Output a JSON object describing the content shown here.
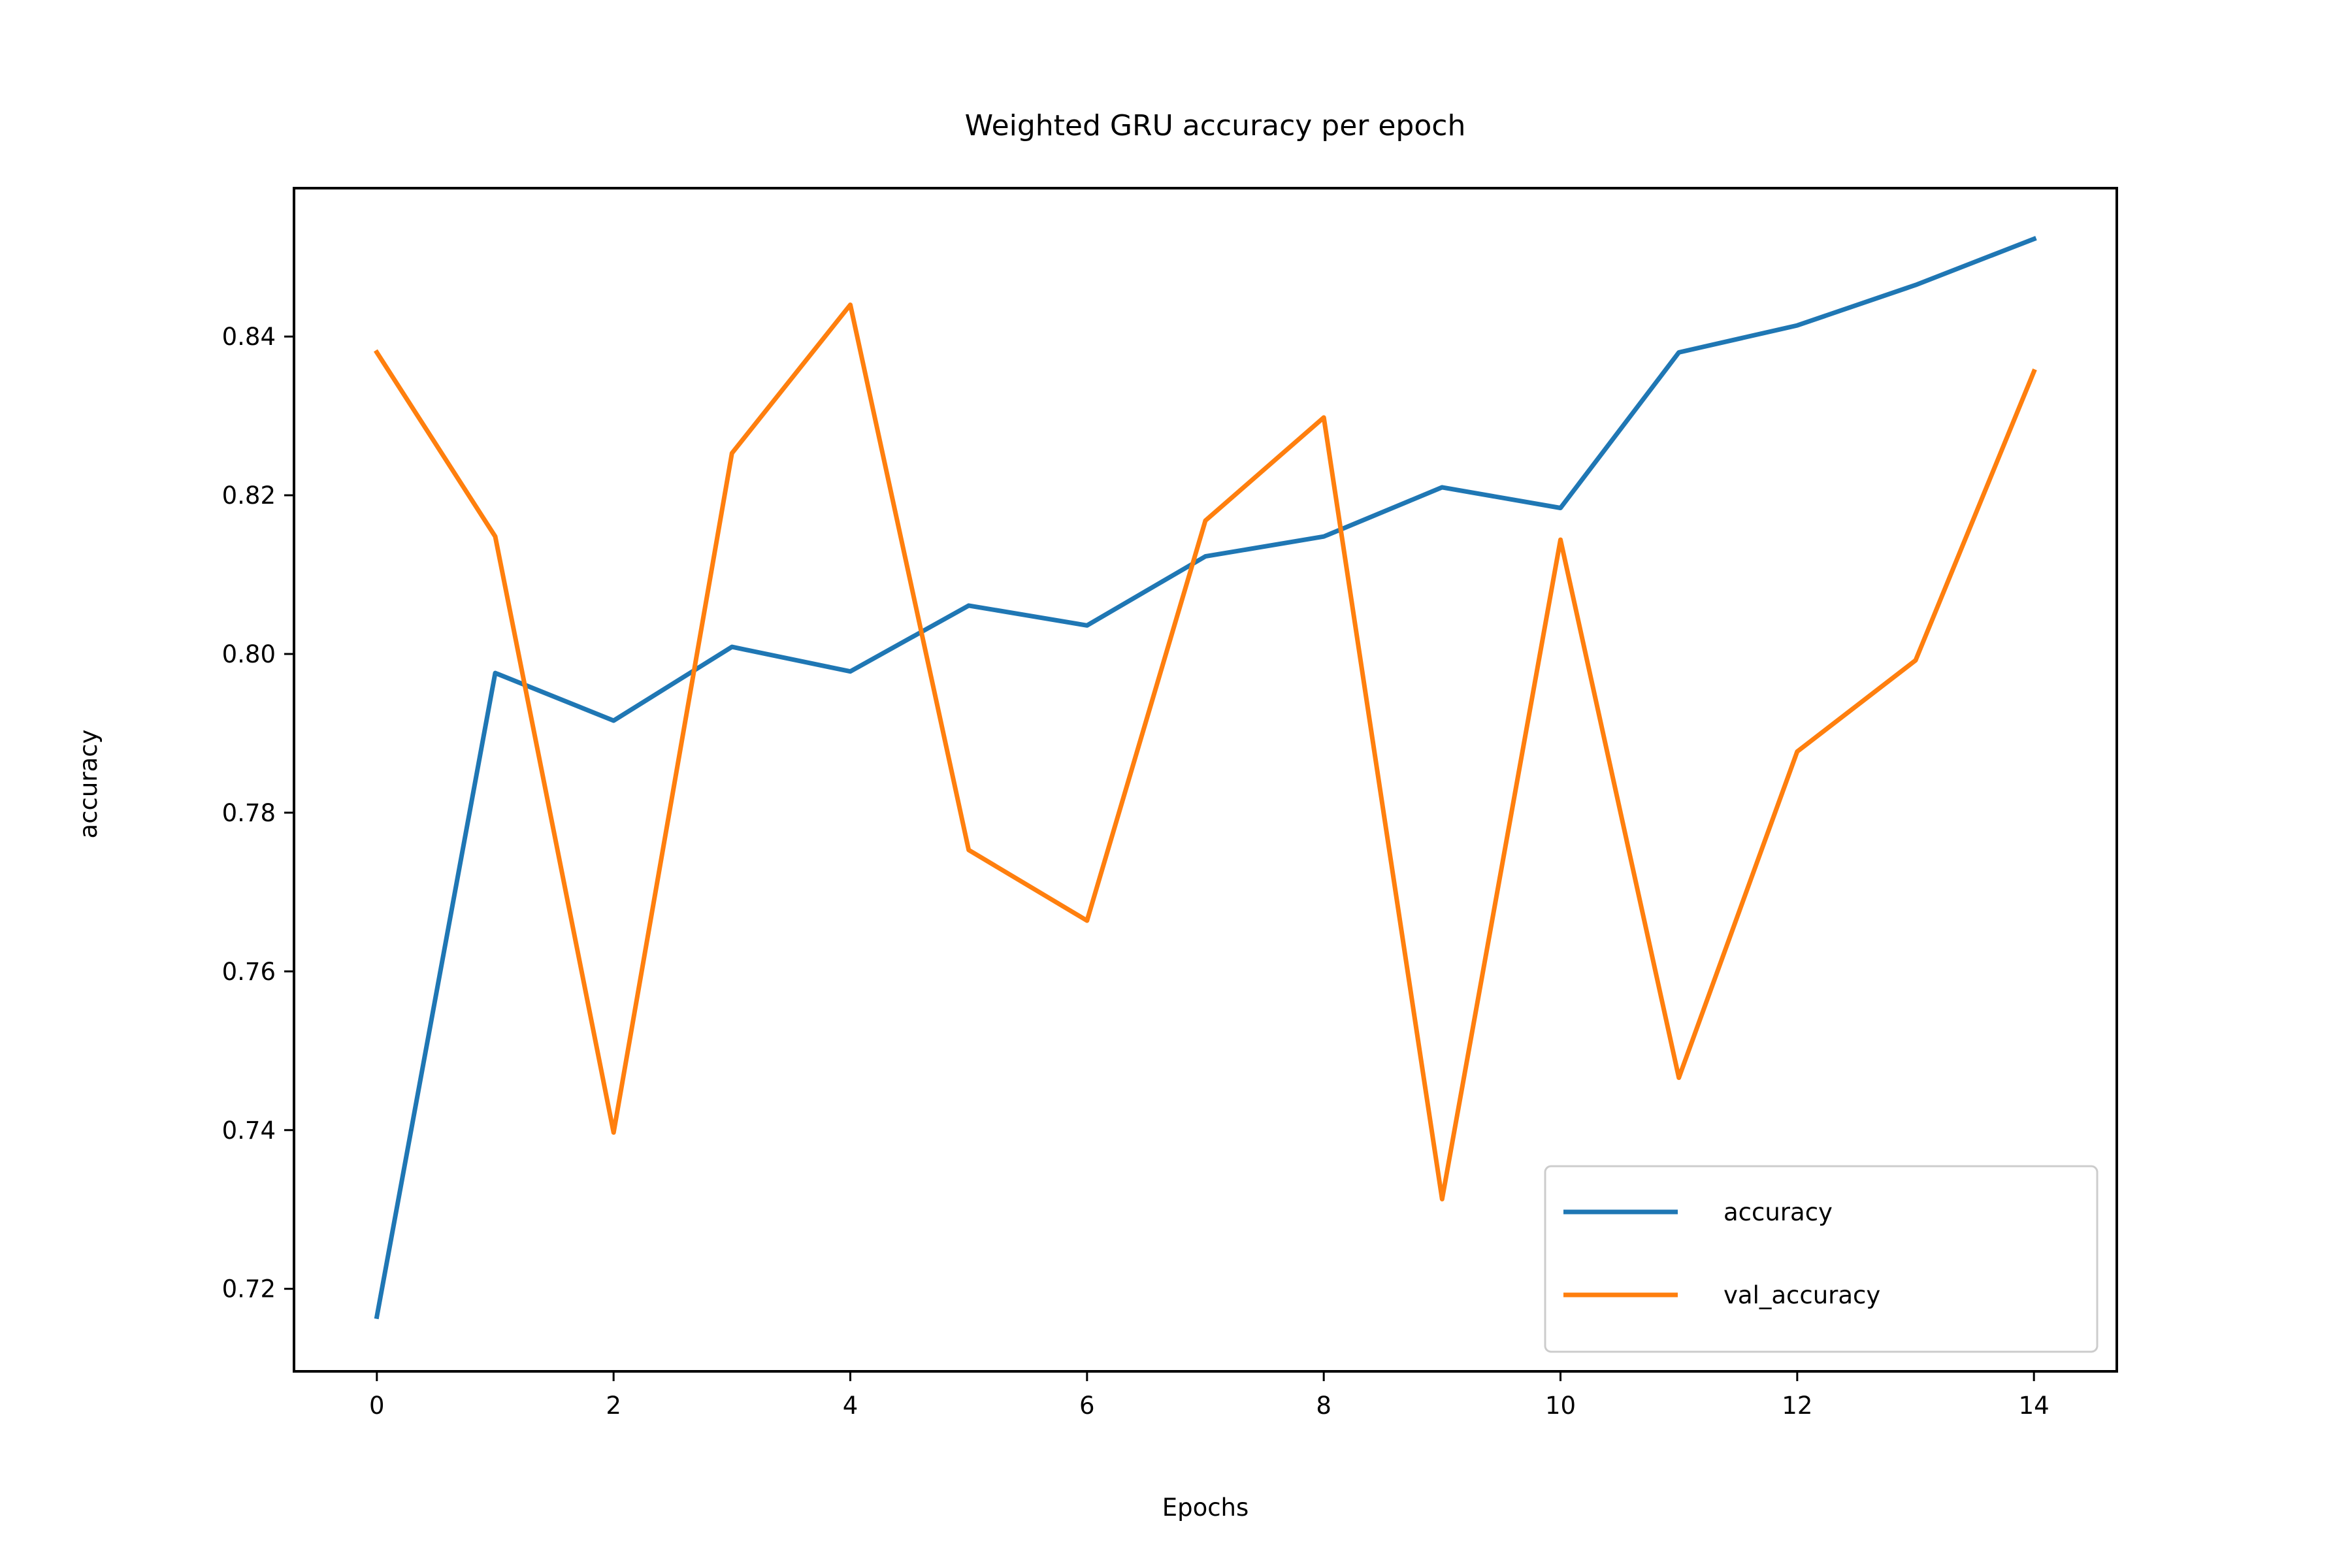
{
  "chart_data": {
    "type": "line",
    "title": "Weighted GRU accuracy per epoch",
    "xlabel": "Epochs",
    "ylabel": "accuracy",
    "x": [
      0,
      1,
      2,
      3,
      4,
      5,
      6,
      7,
      8,
      9,
      10,
      11,
      12,
      13,
      14
    ],
    "xlim": [
      -0.7,
      14.7
    ],
    "ylim": [
      0.7096,
      0.8587
    ],
    "xticks": [
      0,
      2,
      4,
      6,
      8,
      10,
      12,
      14
    ],
    "xtick_labels": [
      "0",
      "2",
      "4",
      "6",
      "8",
      "10",
      "12",
      "14"
    ],
    "yticks": [
      0.72,
      0.74,
      0.76,
      0.78,
      0.8,
      0.82,
      0.84
    ],
    "ytick_labels": [
      "0.72",
      "0.74",
      "0.76",
      "0.78",
      "0.80",
      "0.82",
      "0.84"
    ],
    "grid": false,
    "legend": "lower right",
    "series": [
      {
        "name": "accuracy",
        "color": "#1f77b4",
        "values": [
          0.7165,
          0.7976,
          0.7916,
          0.8009,
          0.7978,
          0.8061,
          0.8036,
          0.8123,
          0.8148,
          0.821,
          0.8184,
          0.838,
          0.8414,
          0.8465,
          0.8523
        ]
      },
      {
        "name": "val_accuracy",
        "color": "#ff7f0e",
        "values": [
          0.838,
          0.8148,
          0.7397,
          0.8253,
          0.844,
          0.7753,
          0.7664,
          0.8168,
          0.8298,
          0.7313,
          0.8144,
          0.7466,
          0.7877,
          0.7992,
          0.8356
        ]
      }
    ]
  }
}
